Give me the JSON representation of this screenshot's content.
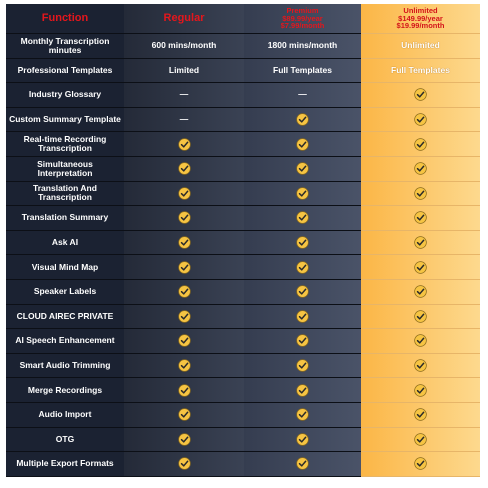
{
  "header": [
    "Function",
    "Regular",
    "Premium\n$89.99/year\n$7.99/month",
    "Unlimited\n$149.99/year\n$19.99/month"
  ],
  "rows": [
    [
      "Monthly Transcription minutes",
      "600 mins/month",
      "1800 mins/month",
      "Unlimited"
    ],
    [
      "Professional Templates",
      "Limited",
      "Full Templates",
      "Full Templates"
    ],
    [
      "Industry Glossary",
      "—",
      "—",
      true
    ],
    [
      "Custom Summary Template",
      "—",
      true,
      true
    ],
    [
      "Real-time Recording Transcription",
      true,
      true,
      true
    ],
    [
      "Simultaneous Interpretation",
      true,
      true,
      true
    ],
    [
      "Translation And Transcription",
      true,
      true,
      true
    ],
    [
      "Translation Summary",
      true,
      true,
      true
    ],
    [
      "Ask AI",
      true,
      true,
      true
    ],
    [
      "Visual Mind Map",
      true,
      true,
      true
    ],
    [
      "Speaker Labels",
      true,
      true,
      true
    ],
    [
      "CLOUD AIREC PRIVATE",
      true,
      true,
      true
    ],
    [
      "AI Speech Enhancement",
      true,
      true,
      true
    ],
    [
      "Smart Audio Trimming",
      true,
      true,
      true
    ],
    [
      "Merge Recordings",
      true,
      true,
      true
    ],
    [
      "Audio Import",
      true,
      true,
      true
    ],
    [
      "OTG",
      true,
      true,
      true
    ],
    [
      "Multiple Export Formats",
      true,
      true,
      true
    ]
  ]
}
